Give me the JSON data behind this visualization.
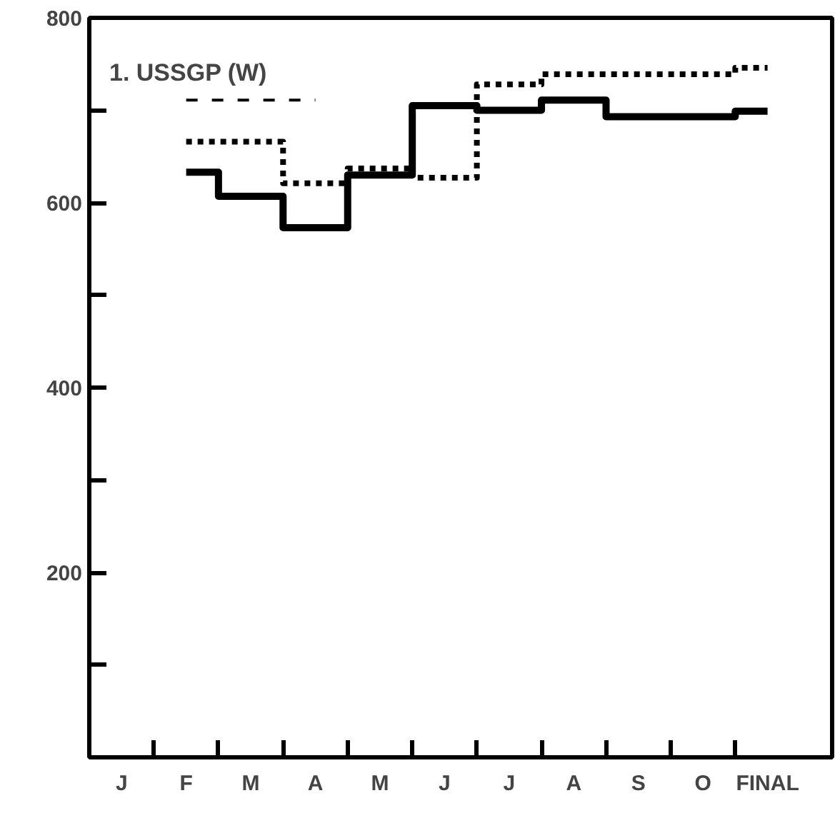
{
  "chart_data": {
    "type": "step",
    "title": "1. USSGP (W)",
    "categories": [
      "J",
      "F",
      "M",
      "A",
      "M",
      "J",
      "J",
      "A",
      "S",
      "O",
      "FINAL"
    ],
    "series": [
      {
        "color": "#000000",
        "line_style": "solid",
        "values": [
          null,
          633,
          607,
          573,
          630,
          705,
          700,
          711,
          693,
          693,
          699
        ]
      },
      {
        "color": "#000000",
        "line_style": "dotted",
        "values": [
          null,
          666,
          666,
          621,
          637,
          627,
          728,
          739,
          739,
          739,
          746
        ]
      },
      {
        "color": "#000000",
        "line_style": "dashed",
        "values": [
          null,
          711,
          711,
          711,
          null,
          null,
          null,
          null,
          null,
          null,
          null
        ]
      }
    ],
    "ylim": [
      0,
      800
    ],
    "yticks": [
      {
        "value": 100,
        "label": null
      },
      200,
      {
        "value": 300,
        "label": null
      },
      400,
      {
        "value": 500,
        "label": null
      },
      600,
      {
        "value": 700,
        "label": null
      },
      800
    ],
    "grid": false,
    "marker": "none"
  }
}
